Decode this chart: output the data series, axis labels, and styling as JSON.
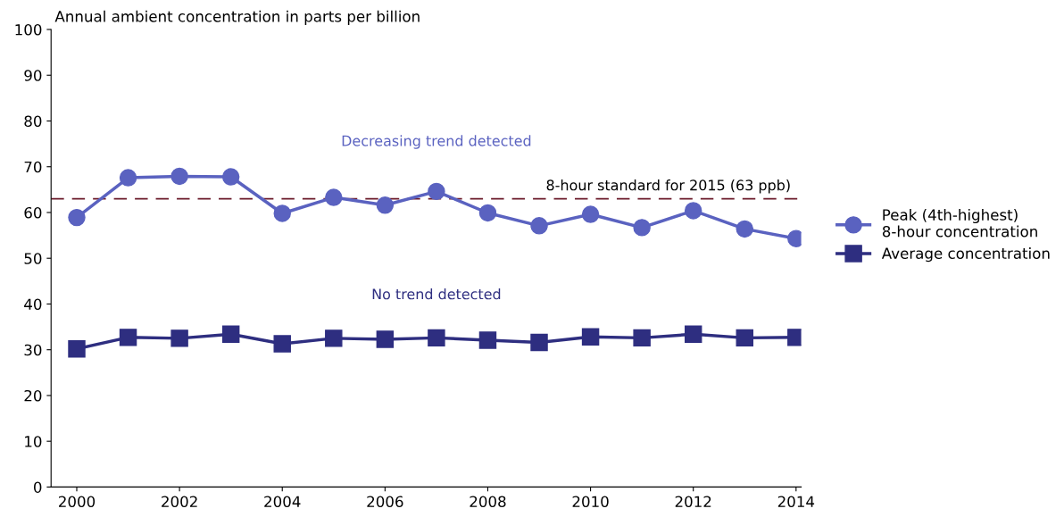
{
  "chart_data": {
    "type": "line",
    "ylabel": "Annual ambient concentration in parts per billion",
    "x": [
      2000,
      2001,
      2002,
      2003,
      2004,
      2005,
      2006,
      2007,
      2008,
      2009,
      2010,
      2011,
      2012,
      2013,
      2014
    ],
    "series": [
      {
        "name": "Peak (4th-highest)\n8-hour concentration",
        "color": "#5a62c0",
        "marker": "circle",
        "values": [
          58.9,
          67.6,
          67.9,
          67.8,
          59.8,
          63.3,
          61.6,
          64.6,
          59.9,
          57.1,
          59.6,
          56.7,
          60.4,
          56.4,
          54.3
        ]
      },
      {
        "name": "Average concentration",
        "color": "#2e2e80",
        "marker": "square",
        "values": [
          30.2,
          32.7,
          32.5,
          33.4,
          31.3,
          32.5,
          32.3,
          32.6,
          32.1,
          31.6,
          32.8,
          32.6,
          33.4,
          32.6,
          32.7
        ]
      }
    ],
    "ref_lines": [
      {
        "axis": "y",
        "value": 63,
        "label": "8-hour standard for 2015 (63 ppb)",
        "color": "#6b1a2a",
        "line_style": "dashed"
      }
    ],
    "annotations": [
      "Decreasing trend detected",
      "No trend detected"
    ],
    "xlim": [
      1999.5,
      2014.1
    ],
    "xticks": [
      2000,
      2002,
      2004,
      2006,
      2008,
      2010,
      2012,
      2014
    ],
    "ylim": [
      0,
      100
    ],
    "yticks": [
      0,
      10,
      20,
      30,
      40,
      50,
      60,
      70,
      80,
      90,
      100
    ],
    "grid": false,
    "legend": "right"
  }
}
